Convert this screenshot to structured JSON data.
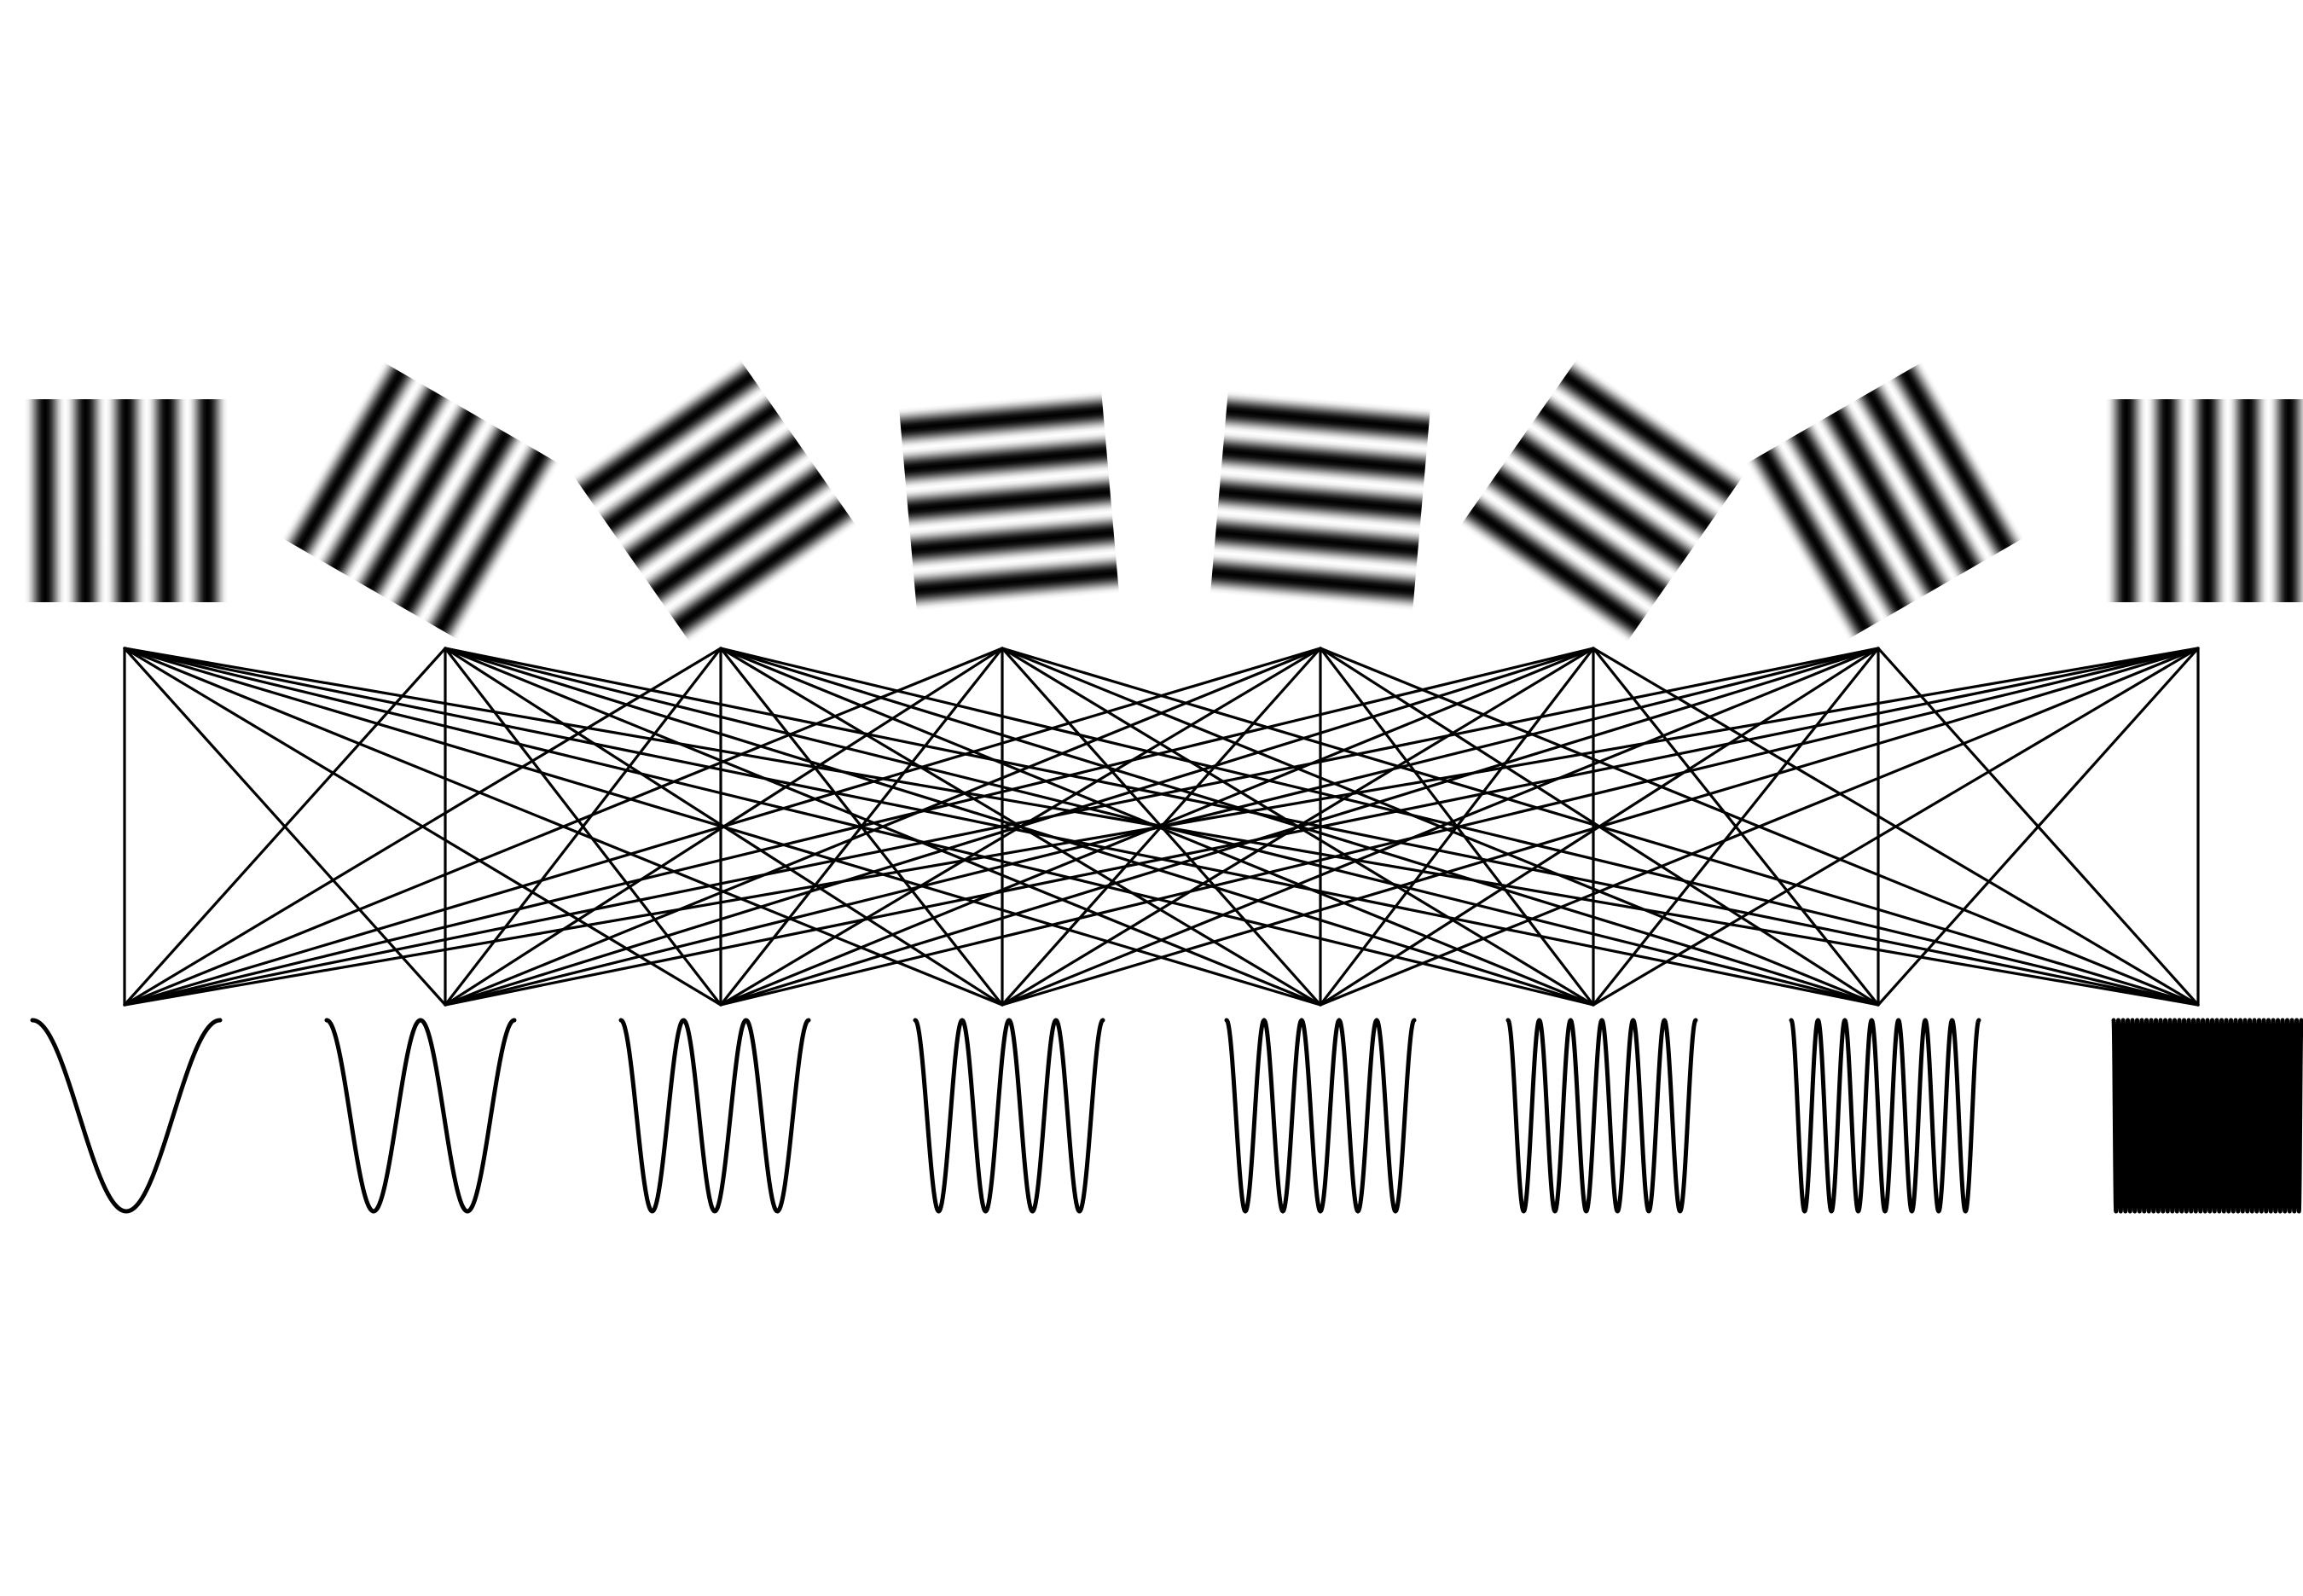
{
  "diagram": {
    "kind": "orientation-to-frequency bipartite mapping",
    "gratings": [
      {
        "orientation_deg": 0
      },
      {
        "orientation_deg": 30
      },
      {
        "orientation_deg": 55
      },
      {
        "orientation_deg": 85
      },
      {
        "orientation_deg": 95
      },
      {
        "orientation_deg": 125
      },
      {
        "orientation_deg": 150
      },
      {
        "orientation_deg": 180
      }
    ],
    "grating_stripe_count": 5,
    "waves": [
      {
        "cycles": 1
      },
      {
        "cycles": 2
      },
      {
        "cycles": 3
      },
      {
        "cycles": 4
      },
      {
        "cycles": 5
      },
      {
        "cycles": 6
      },
      {
        "cycles": 7
      },
      {
        "cycles": 40
      }
    ],
    "connections": "all-to-all",
    "colors": {
      "background": "#ffffff",
      "ink": "#000000",
      "grating_light": "#ffffff",
      "grating_dark": "#000000"
    }
  }
}
